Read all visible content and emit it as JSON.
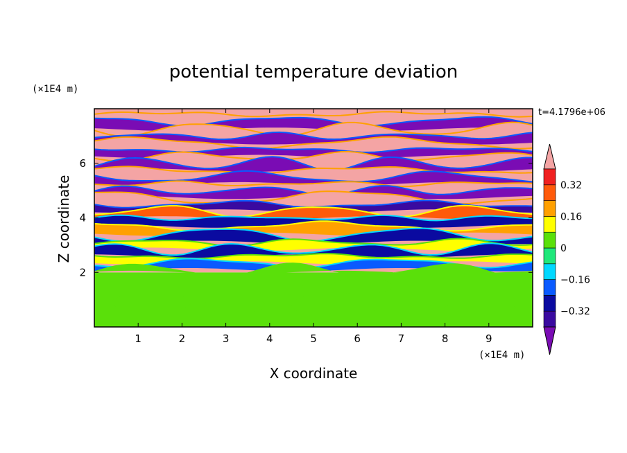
{
  "chart_data": {
    "type": "heatmap",
    "title": "potential temperature deviation",
    "xlabel": "X coordinate",
    "ylabel": "Z coordinate",
    "x_units": "(×1E4 m)",
    "y_units": "(×1E4 m)",
    "time_label": "t=4.1796e+06",
    "xlim": [
      0,
      10
    ],
    "ylim": [
      0,
      8
    ],
    "x_ticks": [
      1,
      2,
      3,
      4,
      5,
      6,
      7,
      8,
      9
    ],
    "y_ticks": [
      2,
      4,
      6
    ],
    "colorbar": {
      "levels": [
        -0.4,
        -0.32,
        -0.24,
        -0.16,
        -0.08,
        0,
        0.08,
        0.16,
        0.24,
        0.32,
        0.4
      ],
      "tick_labels": [
        "0.32",
        "0.16",
        "0",
        "−0.16",
        "−0.32"
      ],
      "tick_values": [
        0.32,
        0.16,
        0,
        -0.16,
        -0.32
      ],
      "colors": [
        "#7a0cb4",
        "#3a0aa0",
        "#0a0aa0",
        "#0a5aff",
        "#00d8ff",
        "#1fe87a",
        "#5ae00a",
        "#ffff00",
        "#ffa000",
        "#ff5a0a",
        "#f02020",
        "#f4a4a4"
      ],
      "extend": "both"
    },
    "bands": [
      {
        "z": 7.8,
        "value": 0.45
      },
      {
        "z": 7.55,
        "value": -0.45
      },
      {
        "z": 7.25,
        "value": 0.45
      },
      {
        "z": 7.0,
        "value": -0.45
      },
      {
        "z": 6.75,
        "value": 0.45
      },
      {
        "z": 6.5,
        "value": -0.45
      },
      {
        "z": 6.25,
        "value": 0.45
      },
      {
        "z": 6.0,
        "value": -0.45
      },
      {
        "z": 5.75,
        "value": 0.45
      },
      {
        "z": 5.5,
        "value": -0.45
      },
      {
        "z": 5.25,
        "value": 0.45
      },
      {
        "z": 5.0,
        "value": -0.45
      },
      {
        "z": 4.75,
        "value": 0.4
      },
      {
        "z": 4.5,
        "value": -0.4
      },
      {
        "z": 4.25,
        "value": 0.3
      },
      {
        "z": 4.0,
        "value": -0.3
      },
      {
        "z": 3.7,
        "value": 0.2
      },
      {
        "z": 3.4,
        "value": -0.25
      },
      {
        "z": 3.1,
        "value": 0.15
      },
      {
        "z": 2.85,
        "value": -0.3
      },
      {
        "z": 2.6,
        "value": 0.1
      },
      {
        "z": 2.35,
        "value": -0.2
      },
      {
        "z": 2.1,
        "value": 0.05
      }
    ],
    "lower_layer": {
      "z_top": 2.0,
      "value": 0.0
    }
  }
}
